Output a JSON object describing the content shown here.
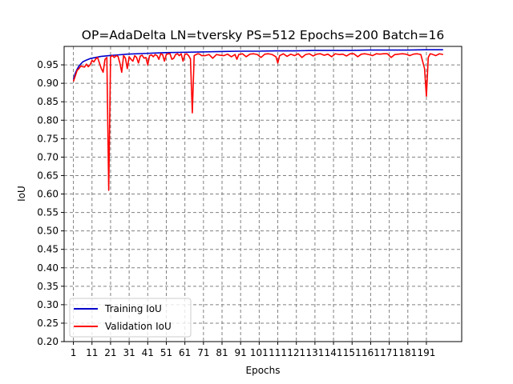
{
  "chart_data": {
    "type": "line",
    "title": "OP=AdaDelta LN=tversky PS=512 Epochs=200 Batch=16",
    "xlabel": "Epochs",
    "ylabel": "IoU",
    "xlim": [
      -4,
      210
    ],
    "ylim": [
      0.2,
      1.0
    ],
    "x_ticks": [
      1,
      11,
      21,
      31,
      41,
      51,
      61,
      71,
      81,
      91,
      101,
      111,
      121,
      131,
      141,
      151,
      161,
      171,
      181,
      191
    ],
    "x_tick_labels": [
      "1",
      "11",
      "21",
      "31",
      "41",
      "51",
      "61",
      "71",
      "81",
      "91",
      "101",
      "111",
      "121",
      "131",
      "141",
      "151",
      "161",
      "171",
      "181",
      "191"
    ],
    "y_ticks": [
      0.2,
      0.25,
      0.3,
      0.35,
      0.4,
      0.45,
      0.5,
      0.55,
      0.6,
      0.65,
      0.7,
      0.75,
      0.8,
      0.85,
      0.9,
      0.95
    ],
    "y_tick_labels": [
      "0.20",
      "0.25",
      "0.30",
      "0.35",
      "0.40",
      "0.45",
      "0.50",
      "0.55",
      "0.60",
      "0.65",
      "0.70",
      "0.75",
      "0.80",
      "0.85",
      "0.90",
      "0.95"
    ],
    "grid": true,
    "legend_position": "bottom-left",
    "series": [
      {
        "name": "Training IoU",
        "color": "#0000cc",
        "x": [
          1,
          2,
          3,
          4,
          6,
          8,
          10,
          13,
          16,
          20,
          25,
          30,
          40,
          50,
          60,
          70,
          80,
          90,
          100,
          110,
          120,
          130,
          140,
          150,
          160,
          170,
          180,
          190,
          200
        ],
        "y": [
          0.91,
          0.927,
          0.938,
          0.947,
          0.958,
          0.963,
          0.967,
          0.97,
          0.973,
          0.975,
          0.977,
          0.979,
          0.981,
          0.983,
          0.984,
          0.985,
          0.986,
          0.987,
          0.987,
          0.988,
          0.988,
          0.989,
          0.989,
          0.989,
          0.99,
          0.99,
          0.99,
          0.991,
          0.991
        ]
      },
      {
        "name": "Validation IoU",
        "color": "#ff0000",
        "x": [
          1,
          2,
          3,
          4,
          5,
          6,
          7,
          8,
          9,
          10,
          11,
          12,
          13,
          14,
          15,
          16,
          17,
          18,
          19,
          20,
          21,
          22,
          23,
          24,
          25,
          26,
          27,
          28,
          29,
          30,
          31,
          32,
          33,
          34,
          35,
          36,
          37,
          38,
          39,
          40,
          41,
          42,
          43,
          44,
          45,
          46,
          47,
          48,
          49,
          50,
          51,
          52,
          53,
          54,
          55,
          56,
          57,
          58,
          59,
          60,
          61,
          62,
          63,
          64,
          65,
          66,
          67,
          68,
          69,
          70,
          72,
          74,
          76,
          78,
          80,
          82,
          84,
          86,
          88,
          89,
          90,
          92,
          94,
          96,
          98,
          100,
          102,
          104,
          106,
          108,
          110,
          111,
          112,
          114,
          116,
          118,
          120,
          122,
          124,
          126,
          128,
          130,
          132,
          134,
          136,
          138,
          140,
          142,
          144,
          146,
          148,
          150,
          152,
          154,
          156,
          158,
          160,
          162,
          164,
          166,
          168,
          170,
          172,
          174,
          176,
          178,
          180,
          182,
          184,
          186,
          188,
          190,
          191,
          192,
          193,
          194,
          196,
          198,
          200
        ],
        "y": [
          0.905,
          0.92,
          0.935,
          0.94,
          0.947,
          0.945,
          0.944,
          0.952,
          0.945,
          0.95,
          0.962,
          0.958,
          0.966,
          0.97,
          0.955,
          0.94,
          0.93,
          0.965,
          0.97,
          0.61,
          0.972,
          0.975,
          0.97,
          0.975,
          0.973,
          0.955,
          0.93,
          0.975,
          0.968,
          0.94,
          0.972,
          0.965,
          0.96,
          0.975,
          0.97,
          0.955,
          0.974,
          0.976,
          0.968,
          0.97,
          0.95,
          0.975,
          0.977,
          0.972,
          0.978,
          0.975,
          0.965,
          0.98,
          0.978,
          0.96,
          0.978,
          0.98,
          0.98,
          0.965,
          0.968,
          0.978,
          0.98,
          0.975,
          0.98,
          0.96,
          0.978,
          0.98,
          0.975,
          0.966,
          0.82,
          0.975,
          0.978,
          0.98,
          0.979,
          0.975,
          0.975,
          0.978,
          0.968,
          0.978,
          0.976,
          0.975,
          0.979,
          0.972,
          0.978,
          0.965,
          0.978,
          0.98,
          0.972,
          0.979,
          0.98,
          0.978,
          0.97,
          0.979,
          0.98,
          0.978,
          0.972,
          0.955,
          0.975,
          0.98,
          0.973,
          0.979,
          0.975,
          0.98,
          0.97,
          0.978,
          0.98,
          0.974,
          0.979,
          0.98,
          0.976,
          0.979,
          0.972,
          0.98,
          0.978,
          0.979,
          0.974,
          0.98,
          0.98,
          0.972,
          0.979,
          0.98,
          0.978,
          0.975,
          0.98,
          0.979,
          0.98,
          0.98,
          0.97,
          0.978,
          0.979,
          0.98,
          0.979,
          0.975,
          0.979,
          0.98,
          0.978,
          0.94,
          0.865,
          0.97,
          0.98,
          0.979,
          0.975,
          0.98,
          0.978
        ]
      }
    ]
  }
}
